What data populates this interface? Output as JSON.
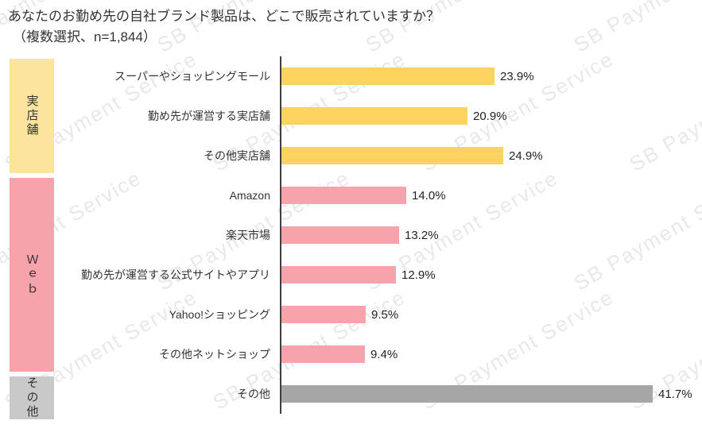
{
  "title": {
    "line1": "あなたのお勤め先の自社ブランド製品は、どこで販売されていますか？",
    "line2": "（複数選択、n=1,844）"
  },
  "watermark": {
    "text": "SB Payment Service"
  },
  "chart_data": {
    "type": "bar",
    "orientation": "horizontal",
    "unit": "%",
    "sample_note": "複数選択、n=1,844",
    "xlim": [
      0,
      47
    ],
    "legend_position": "left-group-boxes",
    "grid": false,
    "groups": [
      {
        "key": "stores",
        "label": "実店舗",
        "box_color": "#fbe49e",
        "bar_color": "#fcd35e",
        "items": [
          {
            "category": "スーパーやショッピングモール",
            "value": 23.9,
            "value_label": "23.9%"
          },
          {
            "category": "勤め先が運営する実店舗",
            "value": 20.9,
            "value_label": "20.9%"
          },
          {
            "category": "その他実店舗",
            "value": 24.9,
            "value_label": "24.9%"
          }
        ]
      },
      {
        "key": "web",
        "label": "Ｗｅｂ",
        "box_color": "#f7a3ac",
        "bar_color": "#f7a3ac",
        "items": [
          {
            "category": "Amazon",
            "value": 14.0,
            "value_label": "14.0%"
          },
          {
            "category": "楽天市場",
            "value": 13.2,
            "value_label": "13.2%"
          },
          {
            "category": "勤め先が運営する公式サイトやアプリ",
            "value": 12.9,
            "value_label": "12.9%"
          },
          {
            "category": "Yahoo!ショッピング",
            "value": 9.5,
            "value_label": "9.5%"
          },
          {
            "category": "その他ネットショップ",
            "value": 9.4,
            "value_label": "9.4%"
          }
        ]
      },
      {
        "key": "other",
        "label": "その他",
        "box_color": "#c9c9c9",
        "bar_color": "#a6a6a6",
        "items": [
          {
            "category": "その他",
            "value": 41.7,
            "value_label": "41.7%"
          }
        ]
      }
    ]
  }
}
